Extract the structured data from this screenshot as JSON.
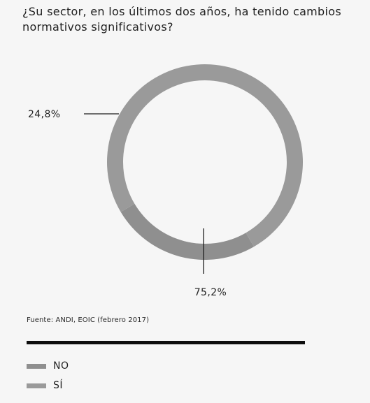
{
  "question": "¿Su sector, en los últimos dos años, ha tenido cambios normativos significativos?",
  "source": "Fuente: ANDI, EOIC (febrero 2017)",
  "colors": {
    "no": "#8f8f8f",
    "si": "#9a9a9a",
    "rule": "#0d0d0d",
    "leader": "#1f1f1f"
  },
  "chart_data": {
    "type": "pie",
    "title": "¿Su sector, en los últimos dos años, ha tenido cambios normativos significativos?",
    "categories": [
      "NO",
      "SÍ"
    ],
    "values": [
      24.8,
      75.2
    ],
    "data_labels": [
      "24,8%",
      "75,2%"
    ],
    "unit": "%",
    "legend": {
      "placement": "bottom-left",
      "entries": [
        "NO",
        "SÍ"
      ]
    }
  }
}
